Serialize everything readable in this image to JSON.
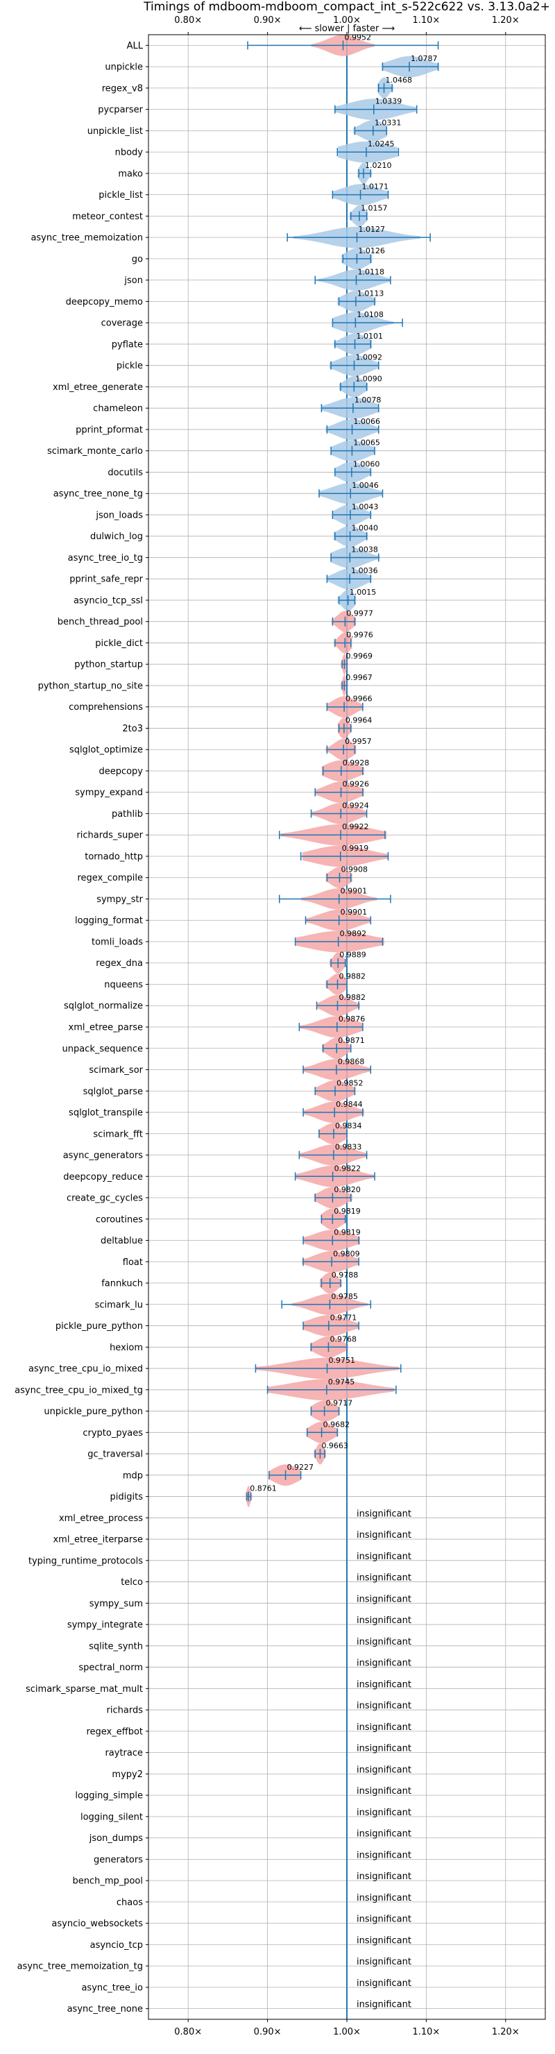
{
  "chart_data": {
    "type": "violin",
    "title": "Timings of mdboom-mdboom_compact_int_s-522c622 vs. 3.13.0a2+",
    "direction_label": "⟵ slower | faster ⟶",
    "xlim": [
      0.75,
      1.25
    ],
    "x_ticks": [
      {
        "value": 0.8,
        "label": "0.80×"
      },
      {
        "value": 0.9,
        "label": "0.90×"
      },
      {
        "value": 1.0,
        "label": "1.00×"
      },
      {
        "value": 1.1,
        "label": "1.10×"
      },
      {
        "value": 1.2,
        "label": "1.20×"
      }
    ],
    "grid": true,
    "insignificant_label": "insignificant",
    "colors": {
      "faster": "#a9c9e6",
      "slower": "#f4a7a7",
      "line": "#1f77b4",
      "grid": "#b0b0b0",
      "text": "#000000"
    },
    "benchmarks": [
      {
        "name": "ALL",
        "value": 0.9952,
        "lo": 0.875,
        "hi": 1.115,
        "spread": 0.025
      },
      {
        "name": "unpickle",
        "value": 1.0787,
        "lo": 1.045,
        "hi": 1.115,
        "spread": 0.03
      },
      {
        "name": "regex_v8",
        "value": 1.0468,
        "lo": 1.04,
        "hi": 1.057,
        "spread": 0.008
      },
      {
        "name": "pycparser",
        "value": 1.0339,
        "lo": 0.985,
        "hi": 1.088,
        "spread": 0.04
      },
      {
        "name": "unpickle_list",
        "value": 1.0331,
        "lo": 1.01,
        "hi": 1.05,
        "spread": 0.02
      },
      {
        "name": "nbody",
        "value": 1.0245,
        "lo": 0.988,
        "hi": 1.065,
        "spread": 0.04
      },
      {
        "name": "mako",
        "value": 1.021,
        "lo": 1.015,
        "hi": 1.03,
        "spread": 0.007
      },
      {
        "name": "pickle_list",
        "value": 1.0171,
        "lo": 0.982,
        "hi": 1.052,
        "spread": 0.03
      },
      {
        "name": "meteor_contest",
        "value": 1.0157,
        "lo": 1.005,
        "hi": 1.025,
        "spread": 0.01
      },
      {
        "name": "async_tree_memoization",
        "value": 1.0127,
        "lo": 0.925,
        "hi": 1.105,
        "spread": 0.05
      },
      {
        "name": "go",
        "value": 1.0126,
        "lo": 0.995,
        "hi": 1.03,
        "spread": 0.018
      },
      {
        "name": "json",
        "value": 1.0118,
        "lo": 0.96,
        "hi": 1.055,
        "spread": 0.03
      },
      {
        "name": "deepcopy_memo",
        "value": 1.0113,
        "lo": 0.99,
        "hi": 1.035,
        "spread": 0.02
      },
      {
        "name": "coverage",
        "value": 1.0108,
        "lo": 0.982,
        "hi": 1.07,
        "spread": 0.03
      },
      {
        "name": "pyflate",
        "value": 1.0101,
        "lo": 0.985,
        "hi": 1.03,
        "spread": 0.02
      },
      {
        "name": "pickle",
        "value": 1.0092,
        "lo": 0.98,
        "hi": 1.04,
        "spread": 0.025
      },
      {
        "name": "xml_etree_generate",
        "value": 1.009,
        "lo": 0.992,
        "hi": 1.025,
        "spread": 0.015
      },
      {
        "name": "chameleon",
        "value": 1.0078,
        "lo": 0.968,
        "hi": 1.04,
        "spread": 0.03
      },
      {
        "name": "pprint_pformat",
        "value": 1.0066,
        "lo": 0.975,
        "hi": 1.04,
        "spread": 0.025
      },
      {
        "name": "scimark_monte_carlo",
        "value": 1.0065,
        "lo": 0.98,
        "hi": 1.035,
        "spread": 0.025
      },
      {
        "name": "docutils",
        "value": 1.006,
        "lo": 0.985,
        "hi": 1.03,
        "spread": 0.02
      },
      {
        "name": "async_tree_none_tg",
        "value": 1.0046,
        "lo": 0.965,
        "hi": 1.045,
        "spread": 0.03
      },
      {
        "name": "json_loads",
        "value": 1.0043,
        "lo": 0.982,
        "hi": 1.03,
        "spread": 0.02
      },
      {
        "name": "dulwich_log",
        "value": 1.004,
        "lo": 0.985,
        "hi": 1.025,
        "spread": 0.018
      },
      {
        "name": "async_tree_io_tg",
        "value": 1.0038,
        "lo": 0.98,
        "hi": 1.04,
        "spread": 0.025
      },
      {
        "name": "pprint_safe_repr",
        "value": 1.0036,
        "lo": 0.975,
        "hi": 1.03,
        "spread": 0.022
      },
      {
        "name": "asyncio_tcp_ssl",
        "value": 1.0015,
        "lo": 0.99,
        "hi": 1.01,
        "spread": 0.01
      },
      {
        "name": "bench_thread_pool",
        "value": 0.9977,
        "lo": 0.982,
        "hi": 1.01,
        "spread": 0.012
      },
      {
        "name": "pickle_dict",
        "value": 0.9976,
        "lo": 0.985,
        "hi": 1.005,
        "spread": 0.01
      },
      {
        "name": "python_startup",
        "value": 0.9969,
        "lo": 0.994,
        "hi": 1.0,
        "spread": 0.003
      },
      {
        "name": "python_startup_no_site",
        "value": 0.9967,
        "lo": 0.994,
        "hi": 1.0,
        "spread": 0.003
      },
      {
        "name": "comprehensions",
        "value": 0.9966,
        "lo": 0.975,
        "hi": 1.02,
        "spread": 0.018
      },
      {
        "name": "2to3",
        "value": 0.9964,
        "lo": 0.99,
        "hi": 1.005,
        "spread": 0.008
      },
      {
        "name": "sqlglot_optimize",
        "value": 0.9957,
        "lo": 0.975,
        "hi": 1.01,
        "spread": 0.015
      },
      {
        "name": "deepcopy",
        "value": 0.9928,
        "lo": 0.97,
        "hi": 1.02,
        "spread": 0.025
      },
      {
        "name": "sympy_expand",
        "value": 0.9926,
        "lo": 0.96,
        "hi": 1.02,
        "spread": 0.025
      },
      {
        "name": "pathlib",
        "value": 0.9924,
        "lo": 0.955,
        "hi": 1.025,
        "spread": 0.025
      },
      {
        "name": "richards_super",
        "value": 0.9922,
        "lo": 0.915,
        "hi": 1.048,
        "spread": 0.05
      },
      {
        "name": "tornado_http",
        "value": 0.9919,
        "lo": 0.942,
        "hi": 1.052,
        "spread": 0.045
      },
      {
        "name": "regex_compile",
        "value": 0.9908,
        "lo": 0.975,
        "hi": 1.005,
        "spread": 0.015
      },
      {
        "name": "sympy_str",
        "value": 0.9901,
        "lo": 0.915,
        "hi": 1.055,
        "spread": 0.03
      },
      {
        "name": "logging_format",
        "value": 0.9901,
        "lo": 0.948,
        "hi": 1.03,
        "spread": 0.03
      },
      {
        "name": "tomli_loads",
        "value": 0.9892,
        "lo": 0.935,
        "hi": 1.045,
        "spread": 0.05
      },
      {
        "name": "regex_dna",
        "value": 0.9889,
        "lo": 0.98,
        "hi": 0.998,
        "spread": 0.008
      },
      {
        "name": "nqueens",
        "value": 0.9882,
        "lo": 0.975,
        "hi": 1.0,
        "spread": 0.012
      },
      {
        "name": "sqlglot_normalize",
        "value": 0.9882,
        "lo": 0.962,
        "hi": 1.015,
        "spread": 0.02
      },
      {
        "name": "xml_etree_parse",
        "value": 0.9876,
        "lo": 0.94,
        "hi": 1.02,
        "spread": 0.03
      },
      {
        "name": "unpack_sequence",
        "value": 0.9871,
        "lo": 0.97,
        "hi": 1.005,
        "spread": 0.015
      },
      {
        "name": "scimark_sor",
        "value": 0.9868,
        "lo": 0.945,
        "hi": 1.03,
        "spread": 0.03
      },
      {
        "name": "sqlglot_parse",
        "value": 0.9852,
        "lo": 0.96,
        "hi": 1.01,
        "spread": 0.022
      },
      {
        "name": "sqlglot_transpile",
        "value": 0.9844,
        "lo": 0.945,
        "hi": 1.02,
        "spread": 0.028
      },
      {
        "name": "scimark_fft",
        "value": 0.9834,
        "lo": 0.965,
        "hi": 1.0,
        "spread": 0.018
      },
      {
        "name": "async_generators",
        "value": 0.9833,
        "lo": 0.94,
        "hi": 1.025,
        "spread": 0.03
      },
      {
        "name": "deepcopy_reduce",
        "value": 0.9822,
        "lo": 0.935,
        "hi": 1.035,
        "spread": 0.035
      },
      {
        "name": "create_gc_cycles",
        "value": 0.982,
        "lo": 0.96,
        "hi": 1.005,
        "spread": 0.02
      },
      {
        "name": "coroutines",
        "value": 0.9819,
        "lo": 0.968,
        "hi": 0.998,
        "spread": 0.015
      },
      {
        "name": "deltablue",
        "value": 0.9819,
        "lo": 0.945,
        "hi": 1.015,
        "spread": 0.03
      },
      {
        "name": "float",
        "value": 0.9809,
        "lo": 0.945,
        "hi": 1.015,
        "spread": 0.028
      },
      {
        "name": "fannkuch",
        "value": 0.9788,
        "lo": 0.968,
        "hi": 0.992,
        "spread": 0.012
      },
      {
        "name": "scimark_lu",
        "value": 0.9785,
        "lo": 0.918,
        "hi": 1.03,
        "spread": 0.03
      },
      {
        "name": "pickle_pure_python",
        "value": 0.9771,
        "lo": 0.945,
        "hi": 1.015,
        "spread": 0.03
      },
      {
        "name": "hexiom",
        "value": 0.9768,
        "lo": 0.955,
        "hi": 1.0,
        "spread": 0.02
      },
      {
        "name": "async_tree_cpu_io_mixed",
        "value": 0.9751,
        "lo": 0.885,
        "hi": 1.068,
        "spread": 0.06
      },
      {
        "name": "async_tree_cpu_io_mixed_tg",
        "value": 0.9745,
        "lo": 0.9,
        "hi": 1.062,
        "spread": 0.06
      },
      {
        "name": "unpickle_pure_python",
        "value": 0.9717,
        "lo": 0.955,
        "hi": 0.99,
        "spread": 0.018
      },
      {
        "name": "crypto_pyaes",
        "value": 0.9682,
        "lo": 0.95,
        "hi": 0.988,
        "spread": 0.018
      },
      {
        "name": "gc_traversal",
        "value": 0.9663,
        "lo": 0.96,
        "hi": 0.972,
        "spread": 0.006
      },
      {
        "name": "mdp",
        "value": 0.9227,
        "lo": 0.902,
        "hi": 0.942,
        "spread": 0.02
      },
      {
        "name": "pidigits",
        "value": 0.8761,
        "lo": 0.874,
        "hi": 0.879,
        "spread": 0.003
      },
      {
        "name": "xml_etree_process",
        "value": null
      },
      {
        "name": "xml_etree_iterparse",
        "value": null
      },
      {
        "name": "typing_runtime_protocols",
        "value": null
      },
      {
        "name": "telco",
        "value": null
      },
      {
        "name": "sympy_sum",
        "value": null
      },
      {
        "name": "sympy_integrate",
        "value": null
      },
      {
        "name": "sqlite_synth",
        "value": null
      },
      {
        "name": "spectral_norm",
        "value": null
      },
      {
        "name": "scimark_sparse_mat_mult",
        "value": null
      },
      {
        "name": "richards",
        "value": null
      },
      {
        "name": "regex_effbot",
        "value": null
      },
      {
        "name": "raytrace",
        "value": null
      },
      {
        "name": "mypy2",
        "value": null
      },
      {
        "name": "logging_simple",
        "value": null
      },
      {
        "name": "logging_silent",
        "value": null
      },
      {
        "name": "json_dumps",
        "value": null
      },
      {
        "name": "generators",
        "value": null
      },
      {
        "name": "bench_mp_pool",
        "value": null
      },
      {
        "name": "chaos",
        "value": null
      },
      {
        "name": "asyncio_websockets",
        "value": null
      },
      {
        "name": "asyncio_tcp",
        "value": null
      },
      {
        "name": "async_tree_memoization_tg",
        "value": null
      },
      {
        "name": "async_tree_io",
        "value": null
      },
      {
        "name": "async_tree_none",
        "value": null
      }
    ]
  }
}
